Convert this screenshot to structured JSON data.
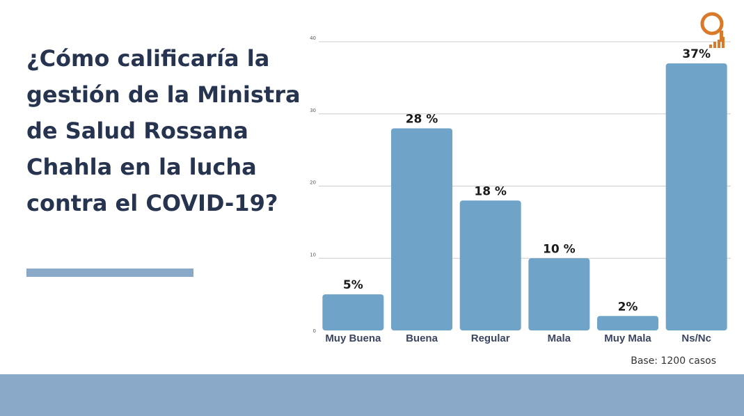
{
  "slide": {
    "title": "¿Cómo calificaría la gestión de la Ministra de  Salud Rossana Chahla en la lucha contra el COVID-19?",
    "base_note": "Base:  1200 casos"
  },
  "colors": {
    "bar": "#6fa3c8",
    "title": "#27344f",
    "accent": "#8aa9c8",
    "logo": "#d97a2b"
  },
  "logo": {
    "icon": "q-signal-icon"
  },
  "chart_data": {
    "type": "bar",
    "title": "",
    "xlabel": "",
    "ylabel": "",
    "ylim": [
      0,
      40
    ],
    "yticks": [
      0,
      10,
      20,
      30,
      40
    ],
    "grid": true,
    "categories": [
      "Muy Buena",
      "Buena",
      "Regular",
      "Mala",
      "Muy Mala",
      "Ns/Nc"
    ],
    "values": [
      5,
      28,
      18,
      10,
      2,
      37
    ],
    "data_labels": [
      "5%",
      "28 %",
      "18 %",
      "10 %",
      "2%",
      "37%"
    ]
  }
}
